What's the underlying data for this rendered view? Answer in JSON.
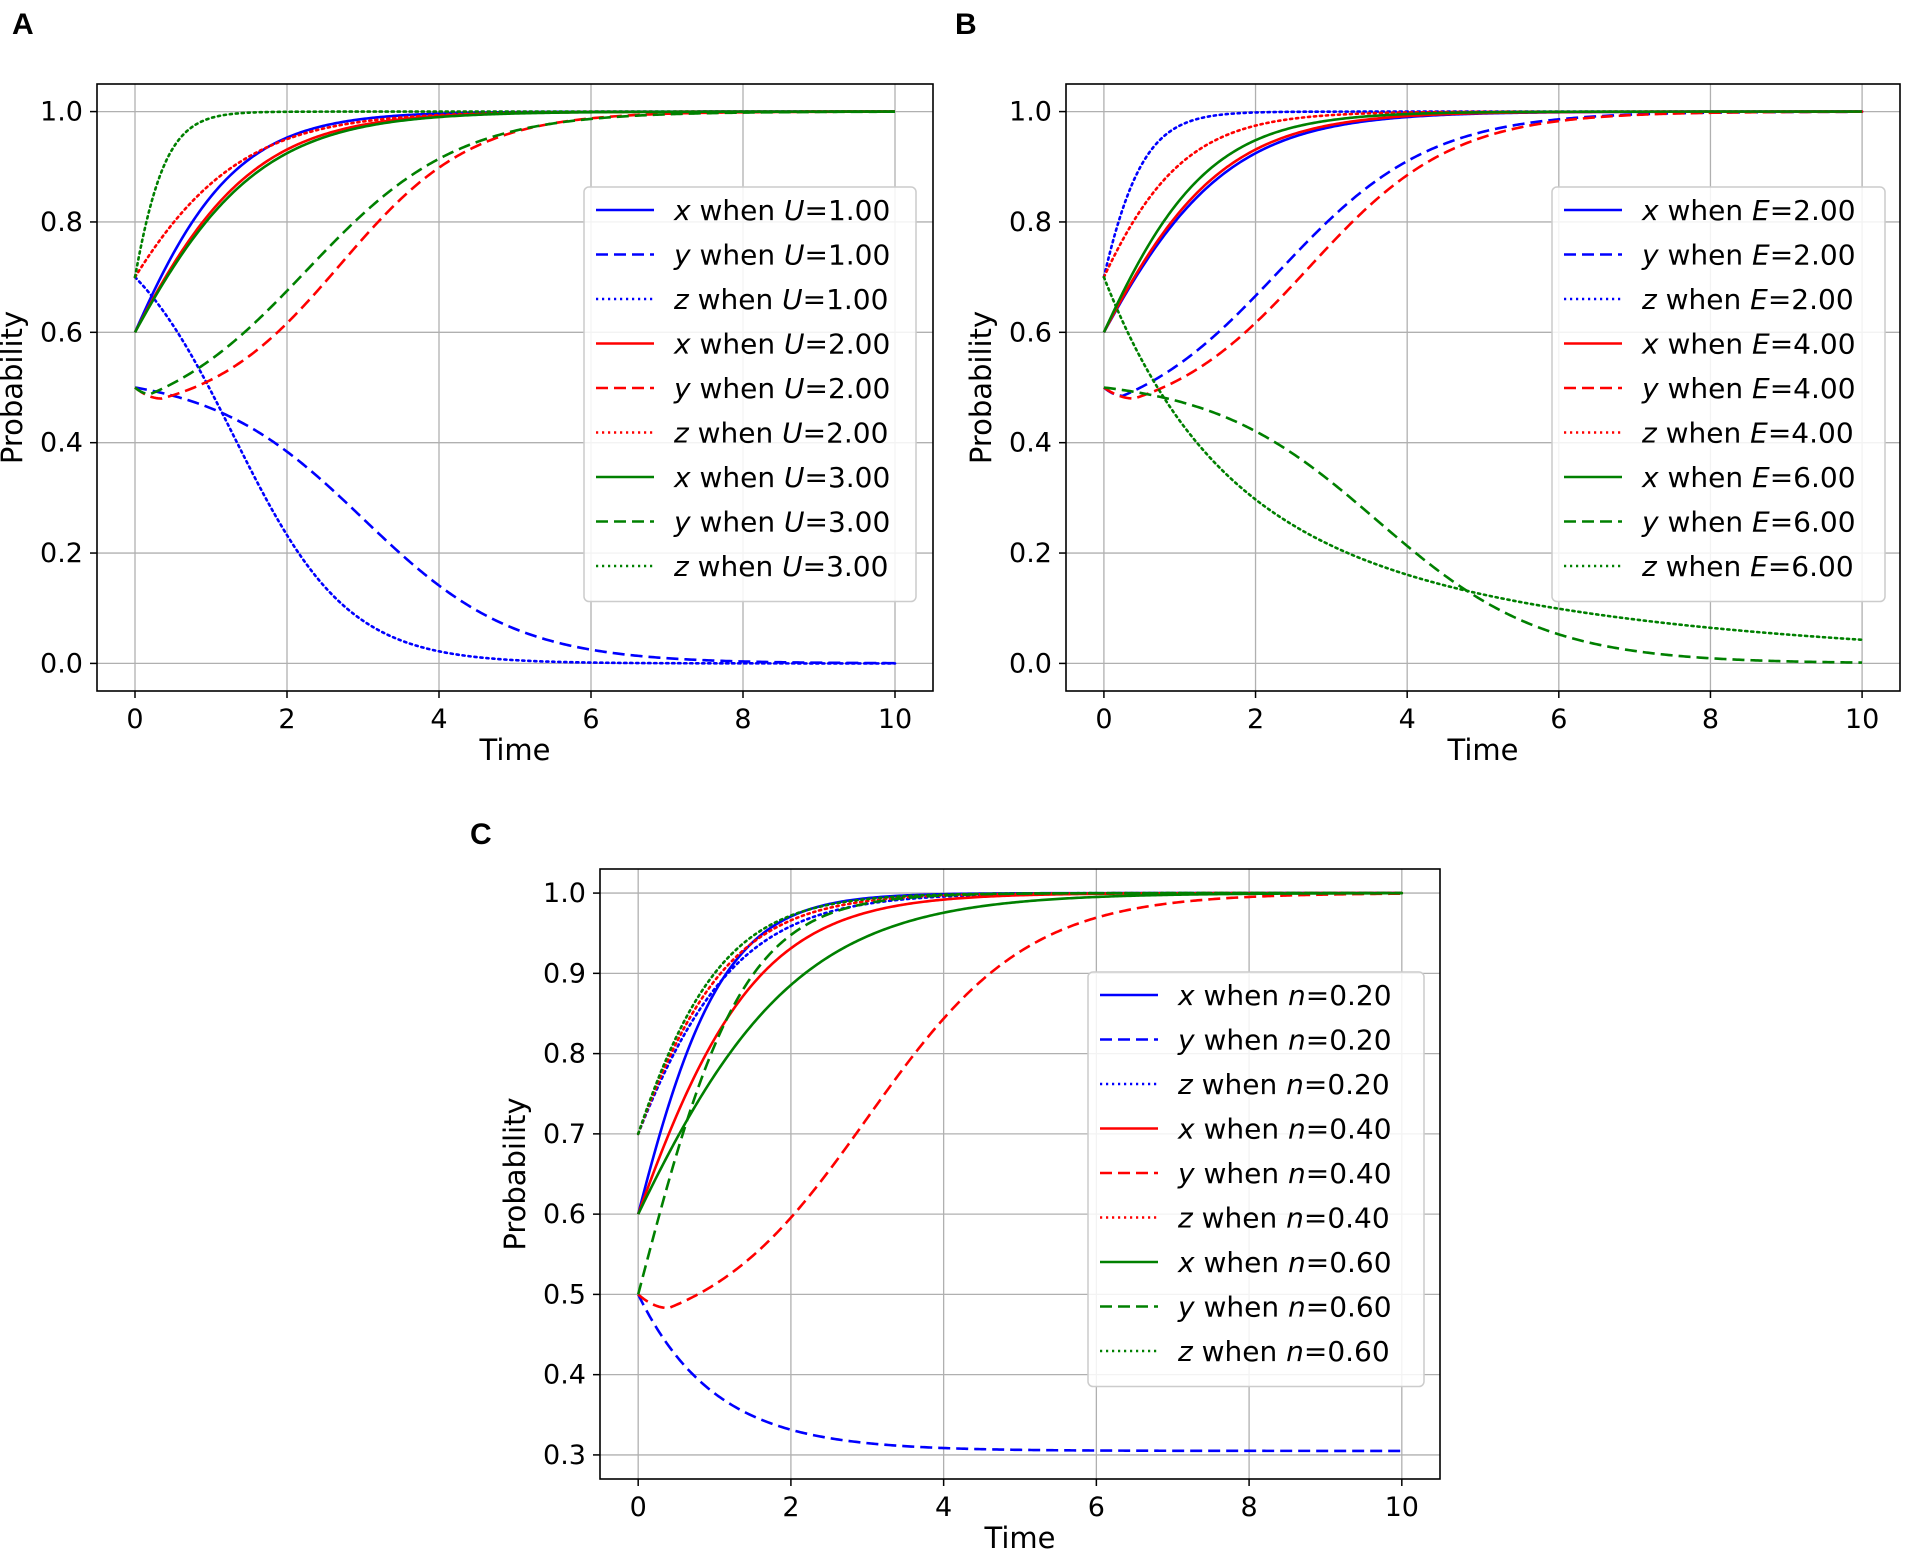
{
  "figure": {
    "panel_labels": [
      "A",
      "B",
      "C"
    ]
  },
  "colors": {
    "blue": "#0000ff",
    "red": "#ff0000",
    "green": "#008000",
    "grid": "#b0b0b0",
    "axes": "#000000"
  },
  "chart_data": [
    {
      "type": "line",
      "panel": "A",
      "xlabel": "Time",
      "ylabel": "Probability",
      "xlim": [
        -0.5,
        10.5
      ],
      "ylim": [
        -0.05,
        1.05
      ],
      "xticks": [
        0,
        2,
        4,
        6,
        8,
        10
      ],
      "xtick_labels": [
        "0",
        "2",
        "4",
        "6",
        "8",
        "10"
      ],
      "yticks": [
        0.0,
        0.2,
        0.4,
        0.6,
        0.8,
        1.0
      ],
      "ytick_labels": [
        "0.0",
        "0.2",
        "0.4",
        "0.6",
        "0.8",
        "1.0"
      ],
      "grid": true,
      "legend_position": "center-right",
      "series": [
        {
          "var": "x",
          "rest": " when ",
          "param": "U",
          "val": "=1.00",
          "color": "blue",
          "style": "solid",
          "model": "logistic",
          "y0": 0.6,
          "k": 1.3
        },
        {
          "var": "y",
          "rest": " when ",
          "param": "U",
          "val": "=1.00",
          "color": "blue",
          "style": "dashed",
          "model": "sigmoid_down",
          "y0": 0.5,
          "t50": 3.0,
          "s": 1.0
        },
        {
          "var": "z",
          "rest": " when ",
          "param": "U",
          "val": "=1.00",
          "color": "blue",
          "style": "dotted",
          "model": "sigmoid_down",
          "y0": 0.7,
          "t50": 1.3,
          "s": 0.75
        },
        {
          "var": "x",
          "rest": " when ",
          "param": "U",
          "val": "=2.00",
          "color": "red",
          "style": "solid",
          "model": "logistic",
          "y0": 0.6,
          "k": 1.1
        },
        {
          "var": "y",
          "rest": " when ",
          "param": "U",
          "val": "=2.00",
          "color": "red",
          "style": "dashed",
          "model": "dip_rise",
          "y0": 0.5,
          "ymin": 0.48,
          "tmin": 0.35,
          "k": 1.15,
          "t50": 2.7
        },
        {
          "var": "z",
          "rest": " when ",
          "param": "U",
          "val": "=2.00",
          "color": "red",
          "style": "dotted",
          "model": "logistic",
          "y0": 0.7,
          "k": 1.05
        },
        {
          "var": "x",
          "rest": " when ",
          "param": "U",
          "val": "=3.00",
          "color": "green",
          "style": "solid",
          "model": "logistic",
          "y0": 0.6,
          "k": 1.05
        },
        {
          "var": "y",
          "rest": " when ",
          "param": "U",
          "val": "=3.00",
          "color": "green",
          "style": "dashed",
          "model": "dip_rise",
          "y0": 0.5,
          "ymin": 0.488,
          "tmin": 0.2,
          "k": 1.0,
          "t50": 2.25
        },
        {
          "var": "z",
          "rest": " when ",
          "param": "U",
          "val": "=3.00",
          "color": "green",
          "style": "dotted",
          "model": "logistic",
          "y0": 0.7,
          "k": 3.6
        }
      ]
    },
    {
      "type": "line",
      "panel": "B",
      "xlabel": "Time",
      "ylabel": "Probability",
      "xlim": [
        -0.5,
        10.5
      ],
      "ylim": [
        -0.05,
        1.05
      ],
      "xticks": [
        0,
        2,
        4,
        6,
        8,
        10
      ],
      "xtick_labels": [
        "0",
        "2",
        "4",
        "6",
        "8",
        "10"
      ],
      "yticks": [
        0.0,
        0.2,
        0.4,
        0.6,
        0.8,
        1.0
      ],
      "ytick_labels": [
        "0.0",
        "0.2",
        "0.4",
        "0.6",
        "0.8",
        "1.0"
      ],
      "grid": true,
      "legend_position": "center-right",
      "series": [
        {
          "var": "x",
          "rest": " when ",
          "param": "E",
          "val": "=2.00",
          "color": "blue",
          "style": "solid",
          "model": "logistic",
          "y0": 0.6,
          "k": 1.05
        },
        {
          "var": "y",
          "rest": " when ",
          "param": "E",
          "val": "=2.00",
          "color": "blue",
          "style": "dashed",
          "model": "dip_rise",
          "y0": 0.5,
          "ymin": 0.485,
          "tmin": 0.25,
          "k": 1.0,
          "t50": 2.3
        },
        {
          "var": "z",
          "rest": " when ",
          "param": "E",
          "val": "=2.00",
          "color": "blue",
          "style": "dotted",
          "model": "logistic",
          "y0": 0.7,
          "k": 2.8
        },
        {
          "var": "x",
          "rest": " when ",
          "param": "E",
          "val": "=4.00",
          "color": "red",
          "style": "solid",
          "model": "logistic",
          "y0": 0.6,
          "k": 1.1
        },
        {
          "var": "y",
          "rest": " when ",
          "param": "E",
          "val": "=4.00",
          "color": "red",
          "style": "dashed",
          "model": "dip_rise",
          "y0": 0.5,
          "ymin": 0.48,
          "tmin": 0.4,
          "k": 1.05,
          "t50": 2.7
        },
        {
          "var": "z",
          "rest": " when ",
          "param": "E",
          "val": "=4.00",
          "color": "red",
          "style": "dotted",
          "model": "logistic",
          "y0": 0.7,
          "k": 1.4
        },
        {
          "var": "x",
          "rest": " when ",
          "param": "E",
          "val": "=6.00",
          "color": "green",
          "style": "solid",
          "model": "logistic",
          "y0": 0.6,
          "k": 1.25
        },
        {
          "var": "y",
          "rest": " when ",
          "param": "E",
          "val": "=6.00",
          "color": "green",
          "style": "dashed",
          "model": "sigmoid_down",
          "y0": 0.5,
          "t50": 3.6,
          "s": 1.1
        },
        {
          "var": "z",
          "rest": " when ",
          "param": "E",
          "val": "=6.00",
          "color": "green",
          "style": "dotted",
          "model": "decay_floor",
          "y0": 0.7,
          "fast": 0.55,
          "k1": 0.75,
          "k2": 0.2
        }
      ]
    },
    {
      "type": "line",
      "panel": "C",
      "xlabel": "Time",
      "ylabel": "Probability",
      "xlim": [
        -0.5,
        10.5
      ],
      "ylim": [
        0.27,
        1.03
      ],
      "xticks": [
        0,
        2,
        4,
        6,
        8,
        10
      ],
      "xtick_labels": [
        "0",
        "2",
        "4",
        "6",
        "8",
        "10"
      ],
      "yticks": [
        0.3,
        0.4,
        0.5,
        0.6,
        0.7,
        0.8,
        0.9,
        1.0
      ],
      "ytick_labels": [
        "0.3",
        "0.4",
        "0.5",
        "0.6",
        "0.7",
        "0.8",
        "0.9",
        "1.0"
      ],
      "grid": true,
      "legend_position": "center-right",
      "series": [
        {
          "var": "x",
          "rest": " when ",
          "param": "n",
          "val": "=0.20",
          "color": "blue",
          "style": "solid",
          "model": "logistic",
          "y0": 0.6,
          "k": 1.55
        },
        {
          "var": "y",
          "rest": " when ",
          "param": "n",
          "val": "=0.20",
          "color": "blue",
          "style": "dashed",
          "model": "exp_decay",
          "y0": 0.5,
          "yinf": 0.305,
          "k": 1.0
        },
        {
          "var": "z",
          "rest": " when ",
          "param": "n",
          "val": "=0.20",
          "color": "blue",
          "style": "dotted",
          "model": "logistic",
          "y0": 0.7,
          "k": 1.15
        },
        {
          "var": "x",
          "rest": " when ",
          "param": "n",
          "val": "=0.40",
          "color": "red",
          "style": "solid",
          "model": "logistic",
          "y0": 0.6,
          "k": 1.1
        },
        {
          "var": "y",
          "rest": " when ",
          "param": "n",
          "val": "=0.40",
          "color": "red",
          "style": "dashed",
          "model": "dip_rise",
          "y0": 0.5,
          "ymin": 0.483,
          "tmin": 0.4,
          "k": 0.95,
          "t50": 3.0
        },
        {
          "var": "z",
          "rest": " when ",
          "param": "n",
          "val": "=0.40",
          "color": "red",
          "style": "dotted",
          "model": "logistic",
          "y0": 0.7,
          "k": 1.25
        },
        {
          "var": "x",
          "rest": " when ",
          "param": "n",
          "val": "=0.60",
          "color": "green",
          "style": "solid",
          "model": "logistic",
          "y0": 0.6,
          "k": 0.82
        },
        {
          "var": "y",
          "rest": " when ",
          "param": "n",
          "val": "=0.60",
          "color": "green",
          "style": "dashed",
          "model": "logistic",
          "y0": 0.5,
          "k": 1.45
        },
        {
          "var": "z",
          "rest": " when ",
          "param": "n",
          "val": "=0.60",
          "color": "green",
          "style": "dotted",
          "model": "logistic",
          "y0": 0.7,
          "k": 1.35
        }
      ]
    }
  ]
}
